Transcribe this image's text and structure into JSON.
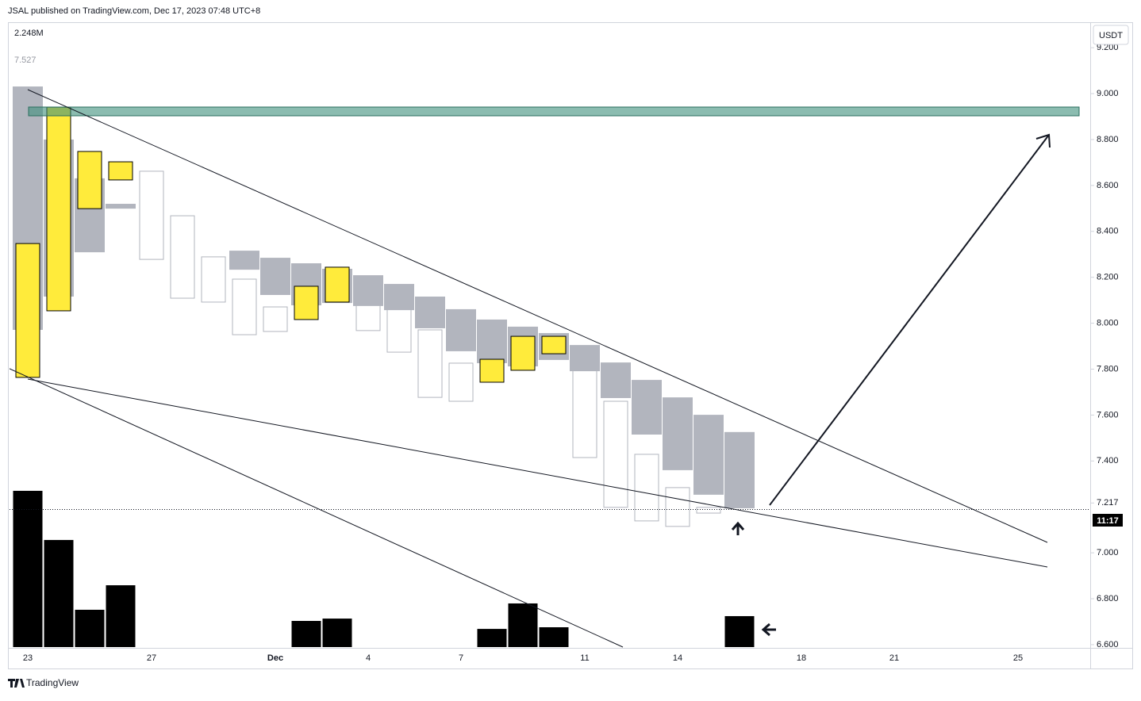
{
  "header": {
    "published": "JSAL published on TradingView.com, Dec 17, 2023 07:48 UTC+8",
    "volume_label": "2.248M",
    "price_label": "7.527"
  },
  "footer": {
    "brand": "TradingView"
  },
  "chart_data": {
    "type": "candlestick-overlay",
    "currency": "USDT",
    "countdown": "11:17",
    "categories": [
      "23",
      null,
      null,
      null,
      "27",
      null,
      null,
      null,
      "Dec",
      null,
      null,
      "4",
      null,
      null,
      "7",
      null,
      null,
      null,
      "11",
      null,
      null,
      "14",
      null,
      null,
      null,
      "18",
      null,
      null,
      "21",
      null,
      null,
      null,
      "25",
      null
    ],
    "series": [
      {
        "color": "#b2b5be",
        "style": "filled",
        "top": [
          9.031,
          8.8,
          8.631,
          8.52,
          null,
          null,
          null,
          8.316,
          8.285,
          8.261,
          8.237,
          8.209,
          8.171,
          8.116,
          8.061,
          8.016,
          7.985,
          7.957,
          7.905,
          7.829,
          7.753,
          7.677,
          7.601,
          7.526,
          null,
          null,
          null,
          null,
          null,
          null,
          null,
          null,
          null,
          null
        ],
        "bottom": [
          7.971,
          8.116,
          8.309,
          8.499,
          null,
          null,
          null,
          8.233,
          8.123,
          8.078,
          8.088,
          8.075,
          8.057,
          7.978,
          7.878,
          7.826,
          7.812,
          7.84,
          7.791,
          7.674,
          7.515,
          7.36,
          7.253,
          7.194,
          null,
          null,
          null,
          null,
          null,
          null,
          null,
          null,
          null,
          null
        ]
      },
      {
        "color": "#b2b5be",
        "style": "hollow",
        "top": [
          null,
          null,
          null,
          null,
          8.662,
          8.468,
          8.289,
          8.192,
          8.071,
          null,
          null,
          8.164,
          8.068,
          7.971,
          7.826,
          null,
          null,
          null,
          7.86,
          7.66,
          7.429,
          7.284,
          7.198,
          null,
          null,
          null,
          null,
          null,
          null,
          null,
          null,
          null,
          null,
          null
        ],
        "bottom": [
          null,
          null,
          null,
          null,
          8.278,
          8.109,
          8.092,
          7.95,
          7.964,
          null,
          null,
          7.968,
          7.874,
          7.677,
          7.66,
          null,
          null,
          null,
          7.415,
          7.198,
          7.139,
          7.115,
          7.173,
          null,
          null,
          null,
          null,
          null,
          null,
          null,
          null,
          null,
          null,
          null
        ]
      },
      {
        "color": "#ffeb3b",
        "style": "outlined",
        "top": [
          8.347,
          8.941,
          8.748,
          8.703,
          null,
          null,
          null,
          null,
          null,
          8.161,
          8.244,
          null,
          null,
          null,
          null,
          7.843,
          7.943,
          7.943,
          null,
          null,
          null,
          null,
          null,
          null,
          null,
          null,
          null,
          null,
          null,
          null,
          null,
          null,
          null,
          null
        ],
        "bottom": [
          7.764,
          8.054,
          8.499,
          8.624,
          null,
          null,
          null,
          null,
          null,
          8.016,
          8.092,
          null,
          null,
          null,
          null,
          7.743,
          7.795,
          7.867,
          null,
          null,
          null,
          null,
          null,
          null,
          null,
          null,
          null,
          null,
          null,
          null,
          null,
          null,
          null,
          null
        ]
      }
    ],
    "volume": {
      "color": "#000000",
      "values": [
        11.35,
        7.78,
        2.71,
        4.49,
        null,
        null,
        null,
        null,
        null,
        1.9,
        2.07,
        null,
        null,
        null,
        null,
        1.32,
        3.17,
        1.44,
        null,
        null,
        null,
        null,
        null,
        2.248,
        null,
        null,
        null,
        null,
        null,
        null,
        null,
        null,
        null,
        null
      ],
      "ylim": [
        0,
        11.52
      ]
    },
    "ylim": [
      6.586,
      9.311
    ],
    "yticks": [
      {
        "value": 9.2,
        "label": "9.200"
      },
      {
        "value": 9.0,
        "label": "9.000"
      },
      {
        "value": 8.8,
        "label": "8.800"
      },
      {
        "value": 8.6,
        "label": "8.600"
      },
      {
        "value": 8.4,
        "label": "8.400"
      },
      {
        "value": 8.2,
        "label": "8.200"
      },
      {
        "value": 8.0,
        "label": "8.000"
      },
      {
        "value": 7.8,
        "label": "7.800"
      },
      {
        "value": 7.6,
        "label": "7.600"
      },
      {
        "value": 7.4,
        "label": "7.400"
      },
      {
        "value": 7.217,
        "label": "7.217"
      },
      {
        "value": 7.0,
        "label": "7.000"
      },
      {
        "value": 6.8,
        "label": "6.800"
      },
      {
        "value": 6.6,
        "label": "6.600"
      }
    ],
    "grid": false
  }
}
